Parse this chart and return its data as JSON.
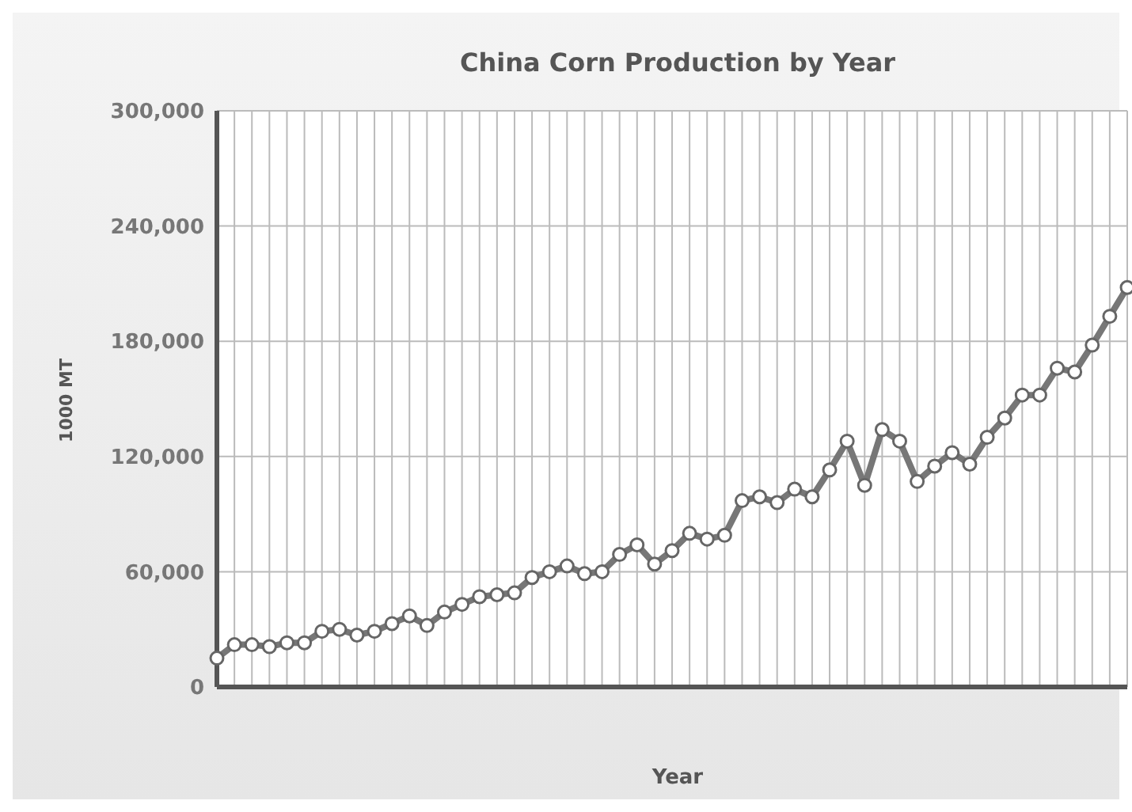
{
  "chart_data": {
    "type": "line",
    "title": "China Corn Production by Year",
    "xlabel": "Year",
    "ylabel": "1000 MT",
    "categories": [
      null,
      null,
      null,
      null,
      null,
      null,
      null,
      null,
      null,
      null,
      null,
      null,
      null,
      null,
      null,
      null,
      null,
      null,
      null,
      null,
      null,
      null,
      null,
      null,
      null,
      null,
      null,
      null,
      null,
      null,
      null,
      null,
      null,
      null,
      null,
      null,
      null,
      null,
      null,
      null,
      null,
      null,
      null,
      null,
      null,
      null,
      null,
      null,
      null,
      null,
      null,
      null,
      null
    ],
    "series": [
      {
        "color": "#777777",
        "values": [
          15000,
          22000,
          22000,
          21000,
          23000,
          23000,
          29000,
          30000,
          27000,
          29000,
          33000,
          37000,
          32000,
          39000,
          43000,
          47000,
          48000,
          49000,
          57000,
          60000,
          63000,
          59000,
          60000,
          69000,
          74000,
          64000,
          71000,
          80000,
          77000,
          79000,
          97000,
          99000,
          96000,
          103000,
          99000,
          113000,
          128000,
          105000,
          134000,
          128000,
          107000,
          115000,
          122000,
          116000,
          130000,
          140000,
          152000,
          152000,
          166000,
          164000,
          178000,
          193000,
          208000
        ]
      }
    ],
    "ylim": [
      0,
      300000
    ],
    "yticks": [
      {
        "value": 0,
        "label": "0"
      },
      {
        "value": 60000,
        "label": "60,000"
      },
      {
        "value": 120000,
        "label": "120,000"
      },
      {
        "value": 180000,
        "label": "180,000"
      },
      {
        "value": 240000,
        "label": "240,000"
      },
      {
        "value": 300000,
        "label": "300,000"
      }
    ],
    "grid": true,
    "marker": "circle",
    "line_style": "solid",
    "legend": false,
    "tick_labels": "y"
  }
}
